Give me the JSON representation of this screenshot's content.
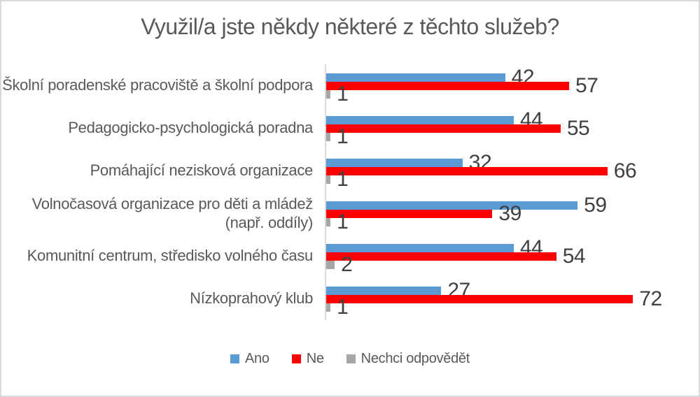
{
  "page": {
    "background": "#FFFFFF",
    "border_color": "#D9D9D9"
  },
  "chart_data": {
    "type": "bar",
    "orientation": "horizontal",
    "title": "Využil/a jste někdy některé z těchto služeb?",
    "categories": [
      "Školní poradenské pracoviště a školní podpora",
      "Pedagogicko-psychologická poradna",
      "Pomáhající nezisková organizace",
      "Volnočasová organizace pro děti a mládež (např. oddíly)",
      "Komunitní centrum, středisko volného času",
      "Nízkoprahový klub"
    ],
    "series": [
      {
        "name": "Ano",
        "color": "#5B9BD5",
        "values": [
          42,
          44,
          32,
          59,
          44,
          27
        ]
      },
      {
        "name": "Ne",
        "color": "#FF0000",
        "values": [
          57,
          55,
          66,
          39,
          54,
          72
        ]
      },
      {
        "name": "Nechci odpovědět",
        "color": "#A6A6A6",
        "values": [
          1,
          1,
          1,
          1,
          2,
          1
        ]
      }
    ],
    "xlim": [
      0,
      80
    ],
    "grid": false,
    "legend_position": "bottom",
    "value_labels": "outside-end",
    "axis_line_color": "#D9D9D9",
    "text_color": "#595959",
    "value_label_color": "#404040"
  }
}
